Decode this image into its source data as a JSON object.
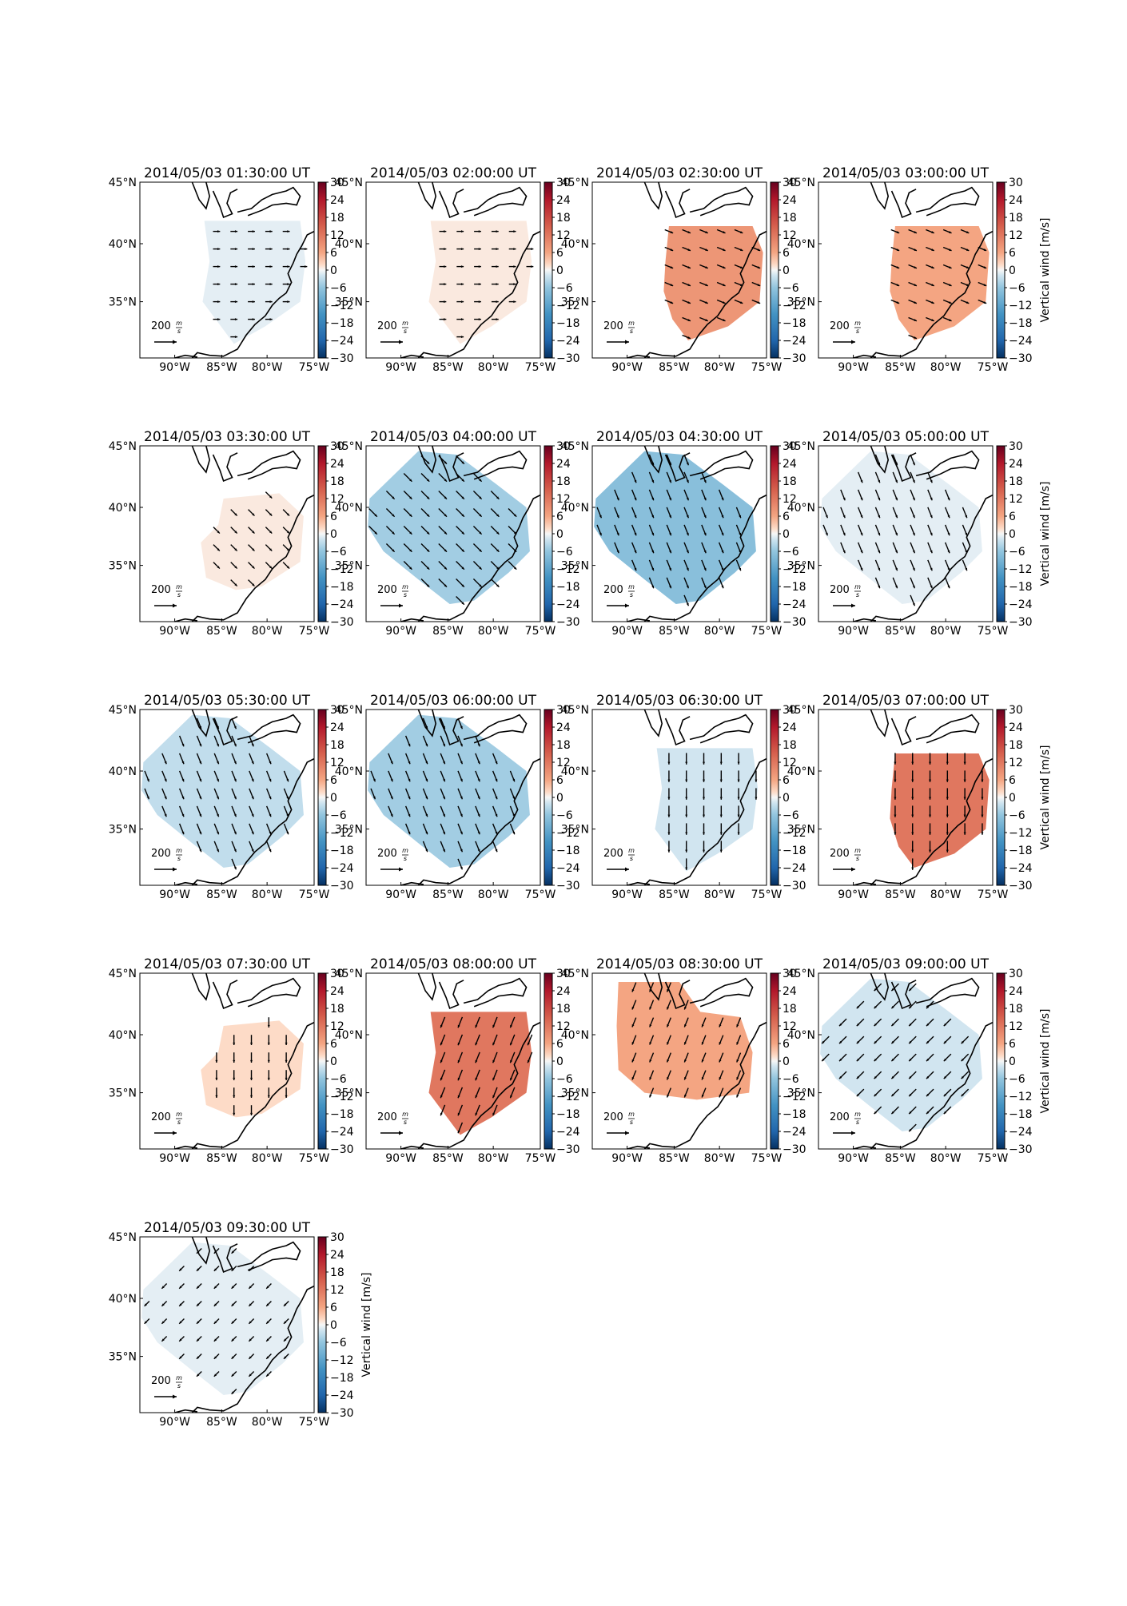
{
  "figure": {
    "colorbar_label": "Vertical wind [m/s]",
    "colorbar_ticks": [
      "30",
      "24",
      "18",
      "12",
      "6",
      "0",
      "−6",
      "−12",
      "−18",
      "−24",
      "−30"
    ],
    "colorbar_range": [
      -30,
      30
    ],
    "colormap": "RdBu_r",
    "lat_labels": [
      "45°N",
      "40°N",
      "35°N"
    ],
    "lon_labels": [
      "90°W",
      "85°W",
      "80°W",
      "75°W"
    ],
    "scale_label": "200",
    "scale_unit_num": "m",
    "scale_unit_den": "s"
  },
  "panels": [
    {
      "title": "2014/05/03 01:30:00 UT",
      "vertical_wind": -1,
      "wind_dir": "E",
      "arrow_len": 0.55,
      "region": "central"
    },
    {
      "title": "2014/05/03 02:00:00 UT",
      "vertical_wind": 1,
      "wind_dir": "E",
      "arrow_len": 0.55,
      "region": "central"
    },
    {
      "title": "2014/05/03 02:30:00 UT",
      "vertical_wind": 8,
      "wind_dir": "ESE",
      "arrow_len": 0.7,
      "region": "southeast"
    },
    {
      "title": "2014/05/03 03:00:00 UT",
      "vertical_wind": 6,
      "wind_dir": "ESE",
      "arrow_len": 0.7,
      "region": "southeast"
    },
    {
      "title": "2014/05/03 03:30:00 UT",
      "vertical_wind": 1,
      "wind_dir": "SE",
      "arrow_len": 0.7,
      "region": "southeast-small"
    },
    {
      "title": "2014/05/03 04:00:00 UT",
      "vertical_wind": -5,
      "wind_dir": "SE",
      "arrow_len": 0.9,
      "region": "wide"
    },
    {
      "title": "2014/05/03 04:30:00 UT",
      "vertical_wind": -7,
      "wind_dir": "SSE",
      "arrow_len": 0.9,
      "region": "wide"
    },
    {
      "title": "2014/05/03 05:00:00 UT",
      "vertical_wind": -1,
      "wind_dir": "SSE",
      "arrow_len": 0.9,
      "region": "wide"
    },
    {
      "title": "2014/05/03 05:30:00 UT",
      "vertical_wind": -3,
      "wind_dir": "SSE",
      "arrow_len": 0.9,
      "region": "wide"
    },
    {
      "title": "2014/05/03 06:00:00 UT",
      "vertical_wind": -5,
      "wind_dir": "SSE",
      "arrow_len": 0.9,
      "region": "wide"
    },
    {
      "title": "2014/05/03 06:30:00 UT",
      "vertical_wind": -2,
      "wind_dir": "S",
      "arrow_len": 0.9,
      "region": "central"
    },
    {
      "title": "2014/05/03 07:00:00 UT",
      "vertical_wind": 12,
      "wind_dir": "S",
      "arrow_len": 0.9,
      "region": "southeast"
    },
    {
      "title": "2014/05/03 07:30:00 UT",
      "vertical_wind": 2,
      "wind_dir": "S",
      "arrow_len": 0.8,
      "region": "southeast-small"
    },
    {
      "title": "2014/05/03 08:00:00 UT",
      "vertical_wind": 12,
      "wind_dir": "SSW",
      "arrow_len": 0.9,
      "region": "central"
    },
    {
      "title": "2014/05/03 08:30:00 UT",
      "vertical_wind": 6,
      "wind_dir": "SSW",
      "arrow_len": 0.8,
      "region": "north"
    },
    {
      "title": "2014/05/03 09:00:00 UT",
      "vertical_wind": -2,
      "wind_dir": "SW",
      "arrow_len": 0.8,
      "region": "wide"
    },
    {
      "title": "2014/05/03 09:30:00 UT",
      "vertical_wind": -1,
      "wind_dir": "SW",
      "arrow_len": 0.55,
      "region": "wide"
    }
  ]
}
